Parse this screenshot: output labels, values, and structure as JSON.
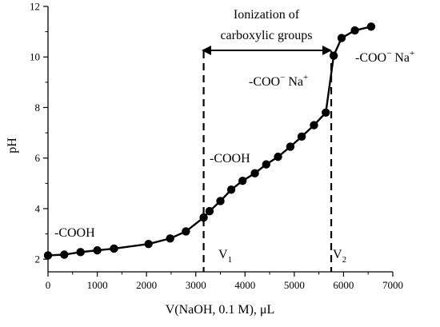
{
  "chart_data": {
    "type": "line",
    "xlabel": "V(NaOH, 0.1 M), μL",
    "ylabel": "pH",
    "xlim": [
      0,
      7000
    ],
    "ylim": [
      1.5,
      12
    ],
    "xticks": [
      0,
      1000,
      2000,
      3000,
      4000,
      5000,
      6000,
      7000
    ],
    "yticks": [
      2,
      4,
      6,
      8,
      10,
      12
    ],
    "xtick_labels": [
      "0",
      "1000",
      "2000",
      "3000",
      "4000",
      "5000",
      "6000",
      "7000"
    ],
    "ytick_labels": [
      "2",
      "4",
      "6",
      "8",
      "10",
      "12"
    ],
    "grid": false,
    "series": [
      {
        "x": [
          0,
          330,
          660,
          1000,
          1340,
          2040,
          2480,
          2800,
          3160,
          3280,
          3500,
          3720,
          3950,
          4200,
          4430,
          4670,
          4920,
          5150,
          5400,
          5640,
          5800,
          5960,
          6230,
          6560
        ],
        "y": [
          2.15,
          2.18,
          2.28,
          2.35,
          2.42,
          2.6,
          2.82,
          3.1,
          3.65,
          3.9,
          4.3,
          4.75,
          5.1,
          5.4,
          5.75,
          6.05,
          6.45,
          6.85,
          7.3,
          7.8,
          10.05,
          10.75,
          11.05,
          11.2
        ]
      }
    ],
    "vertical_lines": [
      {
        "x": 3160,
        "label": "V",
        "subscript": "1"
      },
      {
        "x": 5750,
        "label": "V",
        "subscript": "2"
      }
    ],
    "annotations": {
      "cooh_low": "-COOH",
      "cooh_mid": "-COOH",
      "coo_na_mid_prefix": "-COO",
      "coo_na_mid_sup1": "−",
      "coo_na_mid_mid": " Na",
      "coo_na_mid_sup2": "+",
      "coo_na_high_prefix": "-COO",
      "coo_na_high_sup1": "−",
      "coo_na_high_mid": " Na",
      "coo_na_high_sup2": "+",
      "ionization_line1": "Ionization of",
      "ionization_line2": "carboxylic groups"
    }
  }
}
